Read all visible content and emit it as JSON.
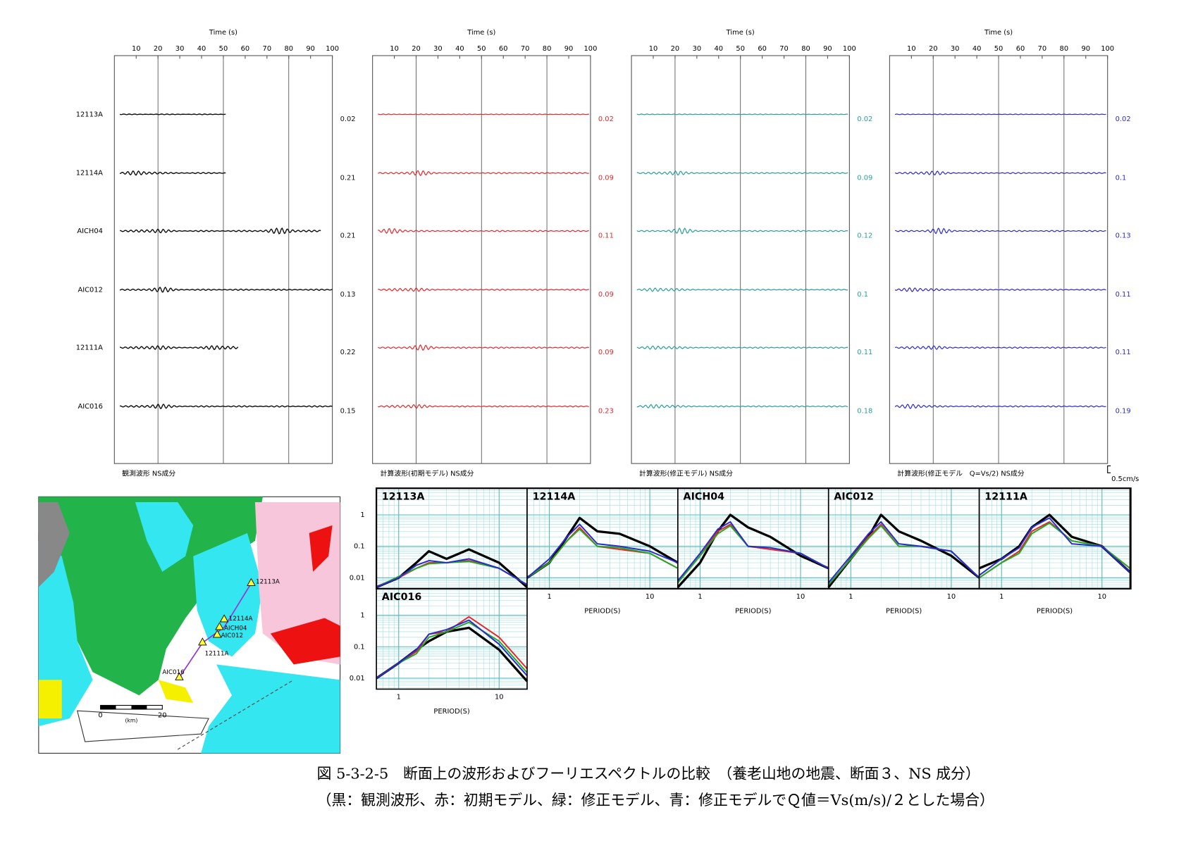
{
  "waveforms": {
    "time_label": "Time (s)",
    "xlim": [
      0,
      100
    ],
    "xticks": [
      10,
      20,
      30,
      40,
      50,
      60,
      70,
      80,
      90,
      100
    ],
    "stations": [
      "12113A",
      "12114A",
      "AICH04",
      "AIC012",
      "12111A",
      "AIC016"
    ],
    "panels": [
      {
        "caption": "観測波形 NS成分",
        "color": "#111111",
        "peaks": [
          0.02,
          0.21,
          0.21,
          0.13,
          0.22,
          0.15
        ]
      },
      {
        "caption": "計算波形(初期モデル) NS成分",
        "color": "#e8262a",
        "peaks": [
          0.02,
          0.09,
          0.11,
          0.09,
          0.09,
          0.23
        ]
      },
      {
        "caption": "計算波形(修正モデル) NS成分",
        "color": "#2a9d9d",
        "peaks": [
          0.02,
          0.09,
          0.12,
          0.1,
          0.11,
          0.18
        ]
      },
      {
        "caption": "計算波形(修正モデル　Q=Vs/2) NS成分",
        "color": "#2a2ad0",
        "peaks": [
          0.02,
          0.1,
          0.13,
          0.11,
          0.11,
          0.19
        ]
      }
    ],
    "scale_label": "0.5cm/s"
  },
  "chart_data": [
    {
      "type": "line",
      "title": "12113A",
      "log_x": true,
      "log_y": true,
      "grid": true,
      "xtick_labels": false,
      "ytick_labels": true,
      "x": [
        0.6,
        1,
        1.5,
        2,
        3,
        5,
        10,
        19
      ],
      "xlim": [
        0.6,
        19
      ],
      "ylim": [
        0.0045,
        7
      ],
      "xticks": [
        1,
        10
      ],
      "yticks": [
        0.01,
        0.1,
        1
      ],
      "series": [
        {
          "color": "#000000",
          "values": [
            0.005,
            0.01,
            0.03,
            0.07,
            0.04,
            0.08,
            0.03,
            0.005
          ]
        },
        {
          "color": "#e8262a",
          "values": [
            0.005,
            0.01,
            0.02,
            0.03,
            0.03,
            0.035,
            0.02,
            0.006
          ]
        },
        {
          "color": "#22aa22",
          "values": [
            0.005,
            0.011,
            0.02,
            0.028,
            0.03,
            0.033,
            0.02,
            0.006
          ]
        },
        {
          "color": "#2a2ad0",
          "values": [
            0.005,
            0.01,
            0.025,
            0.035,
            0.03,
            0.04,
            0.02,
            0.006
          ]
        }
      ]
    },
    {
      "type": "line",
      "title": "12114A",
      "xlabel": "PERIOD(S)",
      "log_x": true,
      "log_y": true,
      "grid": true,
      "xtick_labels": true,
      "ytick_labels": false,
      "x": [
        0.6,
        1,
        1.5,
        2,
        3,
        5,
        10,
        19
      ],
      "xlim": [
        0.6,
        19
      ],
      "ylim": [
        0.0045,
        7
      ],
      "xticks": [
        1,
        10
      ],
      "yticks": [
        0.01,
        0.1,
        1
      ],
      "series": [
        {
          "color": "#000000",
          "values": [
            0.01,
            0.03,
            0.2,
            0.8,
            0.3,
            0.25,
            0.1,
            0.03
          ]
        },
        {
          "color": "#e8262a",
          "values": [
            0.01,
            0.03,
            0.15,
            0.4,
            0.1,
            0.08,
            0.06,
            0.02
          ]
        },
        {
          "color": "#22aa22",
          "values": [
            0.01,
            0.03,
            0.15,
            0.35,
            0.1,
            0.09,
            0.06,
            0.02
          ]
        },
        {
          "color": "#2a2ad0",
          "values": [
            0.01,
            0.04,
            0.2,
            0.5,
            0.12,
            0.1,
            0.07,
            0.03
          ]
        }
      ]
    },
    {
      "type": "line",
      "title": "AICH04",
      "xlabel": "PERIOD(S)",
      "log_x": true,
      "log_y": true,
      "grid": true,
      "xtick_labels": true,
      "ytick_labels": false,
      "x": [
        0.6,
        1,
        1.5,
        2,
        3,
        5,
        10,
        19
      ],
      "xlim": [
        0.6,
        19
      ],
      "ylim": [
        0.0045,
        7
      ],
      "xticks": [
        1,
        10
      ],
      "yticks": [
        0.01,
        0.1,
        1
      ],
      "series": [
        {
          "color": "#000000",
          "values": [
            0.005,
            0.03,
            0.3,
            1.0,
            0.4,
            0.2,
            0.05,
            0.02
          ]
        },
        {
          "color": "#e8262a",
          "values": [
            0.007,
            0.05,
            0.3,
            0.5,
            0.1,
            0.08,
            0.06,
            0.02
          ]
        },
        {
          "color": "#22aa22",
          "values": [
            0.007,
            0.05,
            0.25,
            0.45,
            0.1,
            0.09,
            0.06,
            0.02
          ]
        },
        {
          "color": "#2a2ad0",
          "values": [
            0.008,
            0.06,
            0.35,
            0.6,
            0.1,
            0.09,
            0.06,
            0.02
          ]
        }
      ]
    },
    {
      "type": "line",
      "title": "AIC012",
      "xlabel": "PERIOD(S)",
      "log_x": true,
      "log_y": true,
      "grid": true,
      "xtick_labels": true,
      "ytick_labels": false,
      "x": [
        0.6,
        1,
        1.5,
        2,
        3,
        5,
        10,
        19
      ],
      "xlim": [
        0.6,
        19
      ],
      "ylim": [
        0.0045,
        7
      ],
      "xticks": [
        1,
        10
      ],
      "yticks": [
        0.01,
        0.1,
        1
      ],
      "series": [
        {
          "color": "#000000",
          "values": [
            0.005,
            0.04,
            0.2,
            1.0,
            0.3,
            0.15,
            0.05,
            0.01
          ]
        },
        {
          "color": "#e8262a",
          "values": [
            0.006,
            0.04,
            0.2,
            0.5,
            0.1,
            0.1,
            0.07,
            0.01
          ]
        },
        {
          "color": "#22aa22",
          "values": [
            0.006,
            0.04,
            0.18,
            0.45,
            0.1,
            0.1,
            0.07,
            0.01
          ]
        },
        {
          "color": "#2a2ad0",
          "values": [
            0.007,
            0.05,
            0.25,
            0.6,
            0.12,
            0.1,
            0.07,
            0.01
          ]
        }
      ]
    },
    {
      "type": "line",
      "title": "12111A",
      "xlabel": "PERIOD(S)",
      "log_x": true,
      "log_y": true,
      "grid": true,
      "xtick_labels": true,
      "ytick_labels": false,
      "x": [
        0.6,
        1,
        1.5,
        2,
        3,
        5,
        10,
        19
      ],
      "xlim": [
        0.6,
        19
      ],
      "ylim": [
        0.0045,
        7
      ],
      "xticks": [
        1,
        10
      ],
      "yticks": [
        0.01,
        0.1,
        1
      ],
      "series": [
        {
          "color": "#000000",
          "values": [
            0.02,
            0.04,
            0.1,
            0.4,
            1.0,
            0.2,
            0.1,
            0.015
          ]
        },
        {
          "color": "#e8262a",
          "values": [
            0.01,
            0.03,
            0.07,
            0.3,
            0.6,
            0.15,
            0.1,
            0.02
          ]
        },
        {
          "color": "#22aa22",
          "values": [
            0.01,
            0.03,
            0.06,
            0.25,
            0.55,
            0.15,
            0.1,
            0.02
          ]
        },
        {
          "color": "#2a2ad0",
          "values": [
            0.012,
            0.04,
            0.09,
            0.4,
            0.8,
            0.12,
            0.1,
            0.015
          ]
        }
      ]
    },
    {
      "type": "line",
      "title": "AIC016",
      "xlabel": "PERIOD(S)",
      "log_x": true,
      "log_y": true,
      "grid": true,
      "xtick_labels": true,
      "ytick_labels": true,
      "x": [
        0.6,
        1,
        1.5,
        2,
        3,
        5,
        10,
        19
      ],
      "xlim": [
        0.6,
        19
      ],
      "ylim": [
        0.0045,
        7
      ],
      "xticks": [
        1,
        10
      ],
      "yticks": [
        0.01,
        0.1,
        1
      ],
      "series": [
        {
          "color": "#000000",
          "values": [
            0.01,
            0.03,
            0.08,
            0.15,
            0.3,
            0.4,
            0.08,
            0.008
          ]
        },
        {
          "color": "#e8262a",
          "values": [
            0.01,
            0.03,
            0.07,
            0.25,
            0.3,
            0.9,
            0.2,
            0.02
          ]
        },
        {
          "color": "#22aa22",
          "values": [
            0.01,
            0.03,
            0.06,
            0.2,
            0.3,
            0.6,
            0.15,
            0.015
          ]
        },
        {
          "color": "#2a2ad0",
          "values": [
            0.01,
            0.03,
            0.08,
            0.25,
            0.35,
            0.7,
            0.12,
            0.012
          ]
        }
      ]
    }
  ],
  "map": {
    "stations": [
      "12113A",
      "12114A",
      "AICH04",
      "AIC012",
      "12111A",
      "AIC016"
    ],
    "scale_ticks": [
      0,
      20
    ],
    "scale_unit": "(km)"
  },
  "caption": {
    "line1": "図 5-3-2-5　断面上の波形およびフーリエスペクトルの比較　（養老山地の地震、断面３、NS 成分）",
    "line2": "（黒：観測波形、赤：初期モデル、緑：修正モデル、青：修正モデルでＱ値＝Vs(m/s)/２とした場合）"
  }
}
